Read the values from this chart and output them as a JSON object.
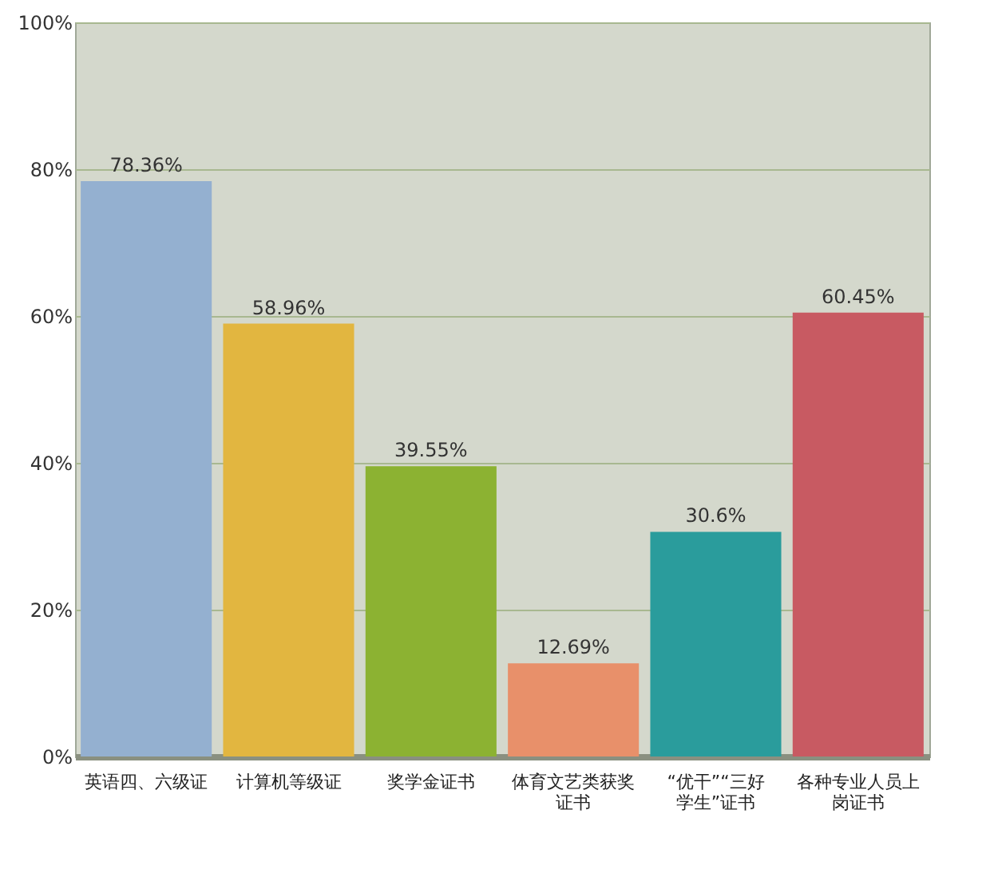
{
  "chart_data": {
    "type": "bar",
    "categories": [
      "英语四、六级证",
      "计算机等级证",
      "奖学金证书",
      "体育文艺类获奖证书",
      "“优干”“三好学生”证书",
      "各种专业人员上岗证书"
    ],
    "values": [
      78.36,
      58.96,
      39.55,
      12.69,
      30.6,
      60.45
    ],
    "colors": [
      "#94b0d0",
      "#e2b640",
      "#8cb232",
      "#e8906a",
      "#2a9c9c",
      "#c85a62"
    ],
    "value_labels": [
      "78.36%",
      "58.96%",
      "39.55%",
      "12.69%",
      "30.6%",
      "60.45%"
    ],
    "ylim": [
      0,
      100
    ],
    "yticks": [
      {
        "value": 0,
        "label": "0%"
      },
      {
        "value": 20,
        "label": "20%"
      },
      {
        "value": 40,
        "label": "40%"
      },
      {
        "value": 60,
        "label": "60%"
      },
      {
        "value": 80,
        "label": "80%"
      },
      {
        "value": 100,
        "label": "100%"
      }
    ],
    "grid": "y"
  }
}
